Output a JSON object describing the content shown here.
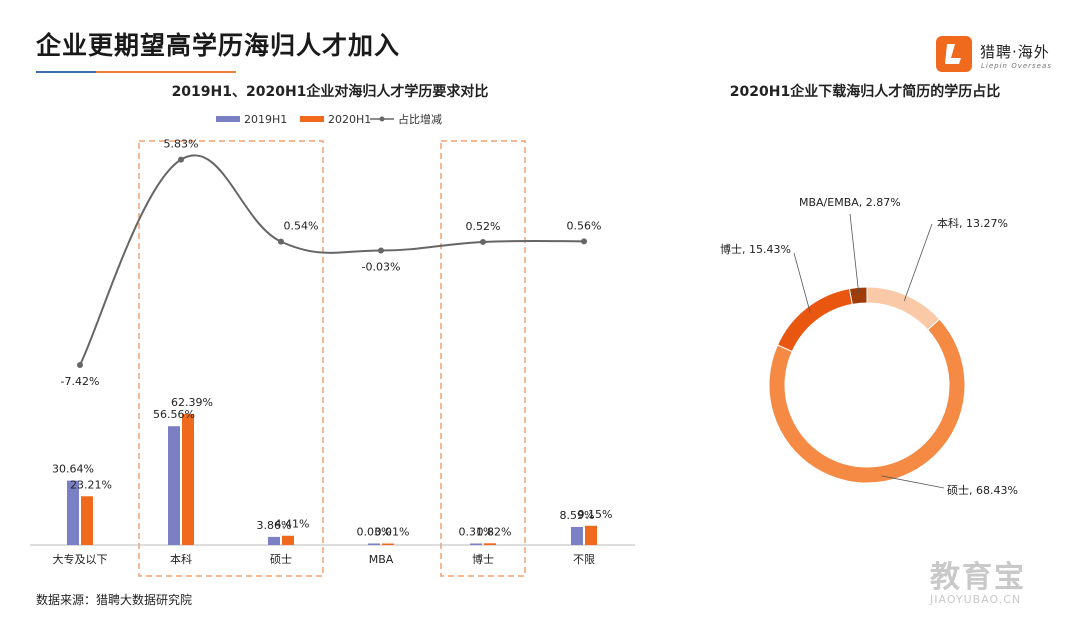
{
  "page": {
    "title": "企业更期望高学历海归人才加入",
    "logo_name": "猎聘·海外",
    "logo_sub": "Liepin Overseas",
    "source": "数据来源：猎聘大数据研究院",
    "watermark": "教育宝",
    "watermark_sub": "JIAOYUBAO.CN"
  },
  "colors": {
    "series_2019": "#7b7fc4",
    "series_2020": "#f06a1e",
    "line": "#666666",
    "highlight_box": "#f0a070",
    "accent": "#f07c3a"
  },
  "chart_data": [
    {
      "type": "bar",
      "title": "2019H1、2020H1企业对海归人才学历要求对比",
      "categories": [
        "大专及以下",
        "本科",
        "硕士",
        "MBA",
        "博士",
        "不限"
      ],
      "series": [
        {
          "name": "2019H1",
          "type": "bar",
          "values": [
            30.64,
            56.56,
            3.86,
            0.03,
            0.31,
            8.59
          ],
          "labels": [
            "30.64%",
            "56.56%",
            "3.86%",
            "0.03%",
            "0.31%",
            "8.59%"
          ]
        },
        {
          "name": "2020H1",
          "type": "bar",
          "values": [
            23.21,
            62.39,
            4.41,
            0.01,
            0.82,
            9.15
          ],
          "labels": [
            "23.21%",
            "62.39%",
            "4.41%",
            "0.01%",
            "0.82%",
            "9.15%"
          ]
        },
        {
          "name": "占比增减",
          "type": "line",
          "values": [
            -7.42,
            5.83,
            0.54,
            -0.03,
            0.52,
            0.56
          ],
          "labels": [
            "-7.42%",
            "5.83%",
            "0.54%",
            "-0.03%",
            "0.52%",
            "0.56%"
          ]
        }
      ],
      "highlighted_categories": [
        "本科",
        "硕士",
        "博士"
      ],
      "legend_position": "top",
      "grid": false
    },
    {
      "type": "pie",
      "donut": true,
      "title": "2020H1企业下载海归人才简历的学历占比",
      "slices": [
        {
          "label": "本科",
          "value": 13.27,
          "text": "本科, 13.27%",
          "color": "#f9c9a8"
        },
        {
          "label": "硕士",
          "value": 68.43,
          "text": "硕士, 68.43%",
          "color": "#f58a45"
        },
        {
          "label": "博士",
          "value": 15.43,
          "text": "博士, 15.43%",
          "color": "#e8560f"
        },
        {
          "label": "MBA/EMBA",
          "value": 2.87,
          "text": "MBA/EMBA, 2.87%",
          "color": "#a03c0a"
        }
      ]
    }
  ]
}
